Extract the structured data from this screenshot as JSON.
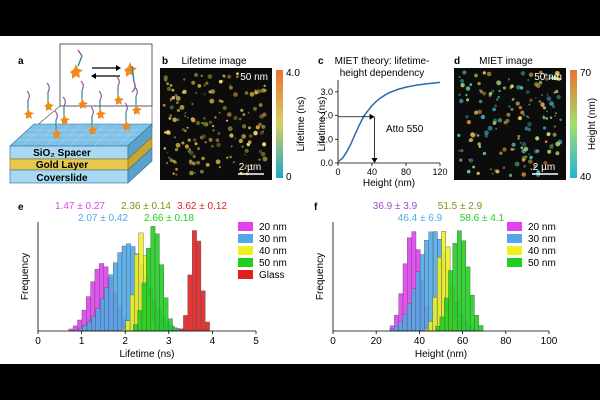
{
  "colors": {
    "magenta": "#e040f0",
    "blue": "#50a8e8",
    "yellow": "#f0f020",
    "green": "#20d020",
    "red": "#e02020",
    "olive": "#8a8a1a",
    "purple": "#9a4ec8"
  },
  "panels": {
    "a": {
      "letter": "a",
      "layers": [
        "SiO₂ Spacer",
        "Gold Layer",
        "Coverslide"
      ]
    },
    "b": {
      "letter": "b",
      "title": "Lifetime image",
      "scale_label": "50 nm",
      "scalebar": "2 µm",
      "colorbar_label": "Lifetime (ns)",
      "colorbar_max": "4.0",
      "colorbar_min": "0"
    },
    "c": {
      "letter": "c",
      "title_line1": "MIET theory: lifetime-",
      "title_line2": "height dependency",
      "annotation": "Atto 550"
    },
    "d": {
      "letter": "d",
      "title": "MIET image",
      "scale_label": "50 nm",
      "scalebar": "2 µm",
      "colorbar_label": "Height (nm)",
      "colorbar_max": "70",
      "colorbar_min": "40"
    },
    "e": {
      "letter": "e"
    },
    "f": {
      "letter": "f"
    }
  },
  "chart_data": [
    {
      "id": "c",
      "type": "line",
      "title": "MIET theory: lifetime-height dependency",
      "xlabel": "Height (nm)",
      "ylabel": "Lifetime (ns)",
      "xlim": [
        0,
        120
      ],
      "ylim": [
        0,
        3.5
      ],
      "xticks": [
        "0",
        "40",
        "80",
        "120"
      ],
      "yticks": [
        "0.0",
        "1.0",
        "2.0",
        "3.0"
      ],
      "series": [
        {
          "name": "MIET theory",
          "x": [
            0,
            5,
            10,
            15,
            20,
            25,
            30,
            35,
            40,
            45,
            50,
            55,
            60,
            70,
            80,
            90,
            100,
            110,
            120
          ],
          "y": [
            0.05,
            0.2,
            0.45,
            0.8,
            1.2,
            1.6,
            1.95,
            2.2,
            2.42,
            2.6,
            2.74,
            2.86,
            2.96,
            3.1,
            3.2,
            3.27,
            3.32,
            3.36,
            3.4
          ]
        }
      ],
      "annotation_point": {
        "x": 43,
        "y": 1.95,
        "label": "Atto 550"
      }
    },
    {
      "id": "e",
      "type": "bar",
      "subtype": "histogram",
      "xlabel": "Lifetime (ns)",
      "ylabel": "Frequency",
      "xlim": [
        0,
        5
      ],
      "xticks": [
        "0",
        "1",
        "2",
        "3",
        "4",
        "5"
      ],
      "series": [
        {
          "name": "20 nm",
          "mean": 1.47,
          "sd": 0.27,
          "label": "1.47 ± 0.27",
          "peak": 0.62,
          "color": "#e040f0"
        },
        {
          "name": "30 nm",
          "mean": 2.07,
          "sd": 0.42,
          "label": "2.07 ± 0.42",
          "peak": 0.8,
          "color": "#50a8e8"
        },
        {
          "name": "40 nm",
          "mean": 2.36,
          "sd": 0.14,
          "label": "2.36 ± 0.14",
          "peak": 0.9,
          "color": "#f0f020"
        },
        {
          "name": "50 nm",
          "mean": 2.66,
          "sd": 0.18,
          "label": "2.66 ± 0.18",
          "peak": 0.97,
          "color": "#20d020"
        },
        {
          "name": "Glass",
          "mean": 3.62,
          "sd": 0.12,
          "label": "3.62 ± 0.12",
          "peak": 0.96,
          "color": "#e02020"
        }
      ]
    },
    {
      "id": "f",
      "type": "bar",
      "subtype": "histogram",
      "xlabel": "Height (nm)",
      "ylabel": "Frequency",
      "xlim": [
        0,
        100
      ],
      "xticks": [
        "0",
        "20",
        "40",
        "60",
        "80",
        "100"
      ],
      "series": [
        {
          "name": "20 nm",
          "mean": 36.9,
          "sd": 3.9,
          "label": "36.9 ± 3.9",
          "peak": 0.92,
          "color": "#e040f0"
        },
        {
          "name": "30 nm",
          "mean": 46.4,
          "sd": 6.9,
          "label": "46.4 ± 6.9",
          "peak": 0.92,
          "color": "#50a8e8"
        },
        {
          "name": "40 nm",
          "mean": 51.5,
          "sd": 2.9,
          "label": "51.5 ± 2.9",
          "peak": 0.92,
          "color": "#f0f020"
        },
        {
          "name": "50 nm",
          "mean": 58.6,
          "sd": 4.1,
          "label": "58.6 ± 4.1",
          "peak": 0.92,
          "color": "#20d020"
        }
      ]
    }
  ]
}
